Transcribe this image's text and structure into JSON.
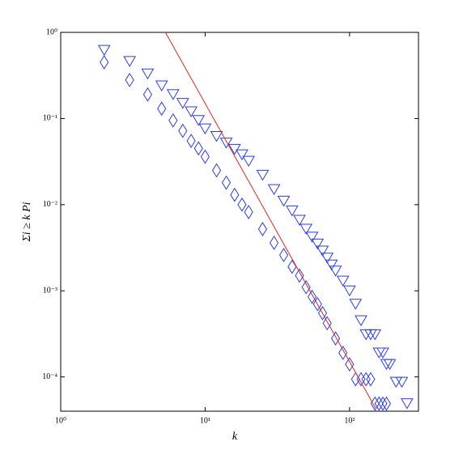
{
  "chart_data": {
    "type": "scatter",
    "xlabel": "k",
    "ylabel": "Σi ≥ k Pi",
    "log_x": true,
    "log_y": true,
    "xlim": [
      1,
      300
    ],
    "ylim": [
      4e-05,
      1
    ],
    "xticks": [
      {
        "value": 1,
        "label": "10⁰"
      },
      {
        "value": 10,
        "label": "10¹"
      },
      {
        "value": 100,
        "label": "10²"
      }
    ],
    "yticks": [
      {
        "value": 1,
        "label": "10⁰"
      },
      {
        "value": 0.1,
        "label": "10⁻¹"
      },
      {
        "value": 0.01,
        "label": "10⁻²"
      },
      {
        "value": 0.001,
        "label": "10⁻³"
      },
      {
        "value": 0.0001,
        "label": "10⁻⁴"
      }
    ],
    "series": [
      {
        "marker": "triangle-down",
        "color": "#2a3cf0",
        "x": [
          2,
          3,
          4,
          5,
          6,
          7,
          8,
          9,
          10,
          12,
          14,
          16,
          18,
          20,
          25,
          30,
          35,
          40,
          45,
          50,
          55,
          60,
          65,
          70,
          75,
          80,
          90,
          100,
          110,
          120,
          130,
          140,
          150,
          160,
          170,
          180,
          190,
          210,
          230,
          250
        ],
        "values": [
          0.62,
          0.46,
          0.33,
          0.24,
          0.19,
          0.15,
          0.12,
          0.095,
          0.076,
          0.062,
          0.052,
          0.044,
          0.038,
          0.032,
          0.022,
          0.015,
          0.011,
          0.0085,
          0.0066,
          0.0052,
          0.0042,
          0.0035,
          0.0029,
          0.0024,
          0.002,
          0.0017,
          0.0013,
          0.001,
          0.0007,
          0.00045,
          0.00031,
          0.00031,
          0.00031,
          0.00019,
          0.00019,
          0.00014,
          0.00014,
          8.7e-05,
          8.7e-05,
          4.9e-05
        ]
      },
      {
        "marker": "diamond",
        "color": "#2a3cf0",
        "x": [
          2,
          3,
          4,
          5,
          6,
          7,
          8,
          9,
          10,
          12,
          14,
          16,
          18,
          20,
          25,
          30,
          35,
          40,
          45,
          50,
          55,
          60,
          65,
          70,
          80,
          90,
          100,
          110,
          120,
          130,
          140,
          150,
          160,
          170,
          180
        ],
        "values": [
          0.45,
          0.28,
          0.19,
          0.13,
          0.095,
          0.072,
          0.055,
          0.045,
          0.036,
          0.025,
          0.018,
          0.013,
          0.01,
          0.0082,
          0.0052,
          0.0036,
          0.0026,
          0.0019,
          0.0015,
          0.0011,
          0.00085,
          0.0007,
          0.00055,
          0.00042,
          0.00028,
          0.00019,
          0.00014,
          9.4e-05,
          9.4e-05,
          9.4e-05,
          9.4e-05,
          4.9e-05,
          4.9e-05,
          4.9e-05,
          4.9e-05
        ]
      },
      {
        "marker": "line",
        "color": "#e8231c",
        "x": [
          5.31,
          151
        ],
        "values": [
          1,
          4.36e-05
        ]
      }
    ]
  }
}
